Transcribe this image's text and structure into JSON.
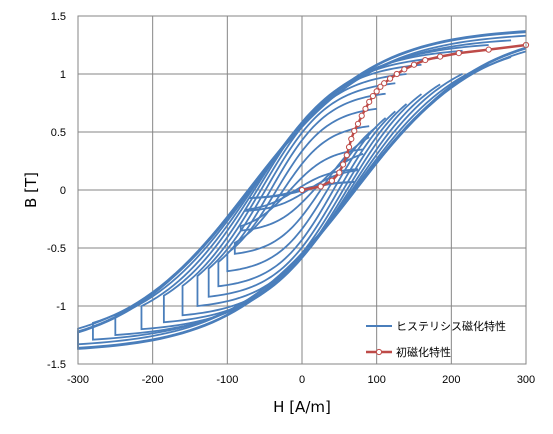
{
  "chart_data": {
    "type": "line",
    "xlabel": "H [A/m]",
    "ylabel": "B [T]",
    "xlim": [
      -300,
      300
    ],
    "ylim": [
      -1.5,
      1.5
    ],
    "x_ticks": [
      "-300",
      "-200",
      "-100",
      "0",
      "100",
      "200",
      "300"
    ],
    "y_ticks": [
      "1.5",
      "1",
      "0.5",
      "0",
      "-0.5",
      "-1",
      "-1.5"
    ],
    "grid": true,
    "legend": {
      "placement": "bottom-right",
      "entries": [
        "ヒステリシス磁化特性",
        "初磁化特性"
      ]
    },
    "colors": {
      "hysteresis": "#4a7ebb",
      "initial": "#be4b48",
      "grid": "#868686"
    },
    "series": [
      {
        "name": "ヒステリシス磁化特性",
        "kind": "hysteresis-family",
        "loops": [
          {
            "hmax": 70,
            "bmax": 0.07,
            "hc": 3
          },
          {
            "hmax": 75,
            "bmax": 0.18,
            "hc": 8
          },
          {
            "hmax": 82,
            "bmax": 0.35,
            "hc": 16
          },
          {
            "hmax": 90,
            "bmax": 0.55,
            "hc": 25
          },
          {
            "hmax": 100,
            "bmax": 0.7,
            "hc": 34
          },
          {
            "hmax": 112,
            "bmax": 0.83,
            "hc": 42
          },
          {
            "hmax": 125,
            "bmax": 0.92,
            "hc": 49
          },
          {
            "hmax": 140,
            "bmax": 1.0,
            "hc": 55
          },
          {
            "hmax": 160,
            "bmax": 1.08,
            "hc": 60
          },
          {
            "hmax": 185,
            "bmax": 1.14,
            "hc": 64
          },
          {
            "hmax": 215,
            "bmax": 1.2,
            "hc": 67
          },
          {
            "hmax": 250,
            "bmax": 1.25,
            "hc": 69
          },
          {
            "hmax": 280,
            "bmax": 1.29,
            "hc": 70
          },
          {
            "hmax": 300,
            "bmax": 1.33,
            "hc": 71
          },
          {
            "hmax": 300,
            "bmax": 1.36,
            "hc": 72
          },
          {
            "hmax": 300,
            "bmax": 1.37,
            "hc": 72
          }
        ]
      },
      {
        "name": "初磁化特性",
        "x": [
          0,
          25,
          40,
          50,
          55,
          60,
          63,
          66,
          70,
          75,
          80,
          85,
          90,
          95,
          100,
          105,
          110,
          118,
          127,
          137,
          150,
          165,
          185,
          210,
          250,
          300
        ],
        "y": [
          0,
          0.03,
          0.08,
          0.15,
          0.22,
          0.3,
          0.37,
          0.44,
          0.51,
          0.57,
          0.64,
          0.7,
          0.76,
          0.81,
          0.85,
          0.89,
          0.92,
          0.96,
          1.0,
          1.04,
          1.08,
          1.12,
          1.15,
          1.18,
          1.21,
          1.25
        ]
      }
    ]
  }
}
